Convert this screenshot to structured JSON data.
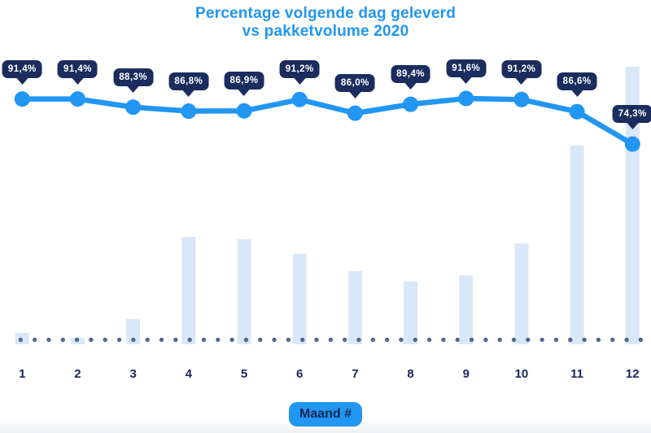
{
  "chart_data": {
    "type": "combo",
    "title": "Percentage volgende dag geleverd vs pakketvolume 2020",
    "title_line1": "Percentage volgende dag geleverd",
    "title_line2": "vs pakketvolume 2020",
    "xlabel": "Maand #",
    "categories": [
      "1",
      "2",
      "3",
      "4",
      "5",
      "6",
      "7",
      "8",
      "9",
      "10",
      "11",
      "12"
    ],
    "grid": "off",
    "legend": "none",
    "baseline_dotted": true,
    "series": [
      {
        "name": "Percentage volgende dag geleverd",
        "type": "line",
        "unit": "%",
        "values": [
          91.4,
          91.4,
          88.3,
          86.8,
          86.9,
          91.2,
          86.0,
          89.4,
          91.6,
          91.2,
          86.6,
          74.3
        ],
        "labels": [
          "91,4%",
          "91,4%",
          "88,3%",
          "86,8%",
          "86,9%",
          "91,2%",
          "86,0%",
          "89,4%",
          "91,6%",
          "91,2%",
          "86,6%",
          "74,3%"
        ]
      },
      {
        "name": "Pakketvolume 2020",
        "type": "bar",
        "unit": "relative index (max month = 100)",
        "values": [
          4.1,
          2.3,
          9.1,
          38.7,
          37.8,
          32.6,
          26.4,
          22.6,
          24.9,
          36.4,
          71.6,
          100
        ]
      }
    ]
  },
  "colors": {
    "accent_blue": "#2196f3",
    "navy": "#1b2d5e",
    "axis_text_navy": "#16265c",
    "bar_fill": "#d9e8f8",
    "baseline_dot": "#52688f",
    "tooltip_text": "#ffffff",
    "background": "#ffffff"
  }
}
